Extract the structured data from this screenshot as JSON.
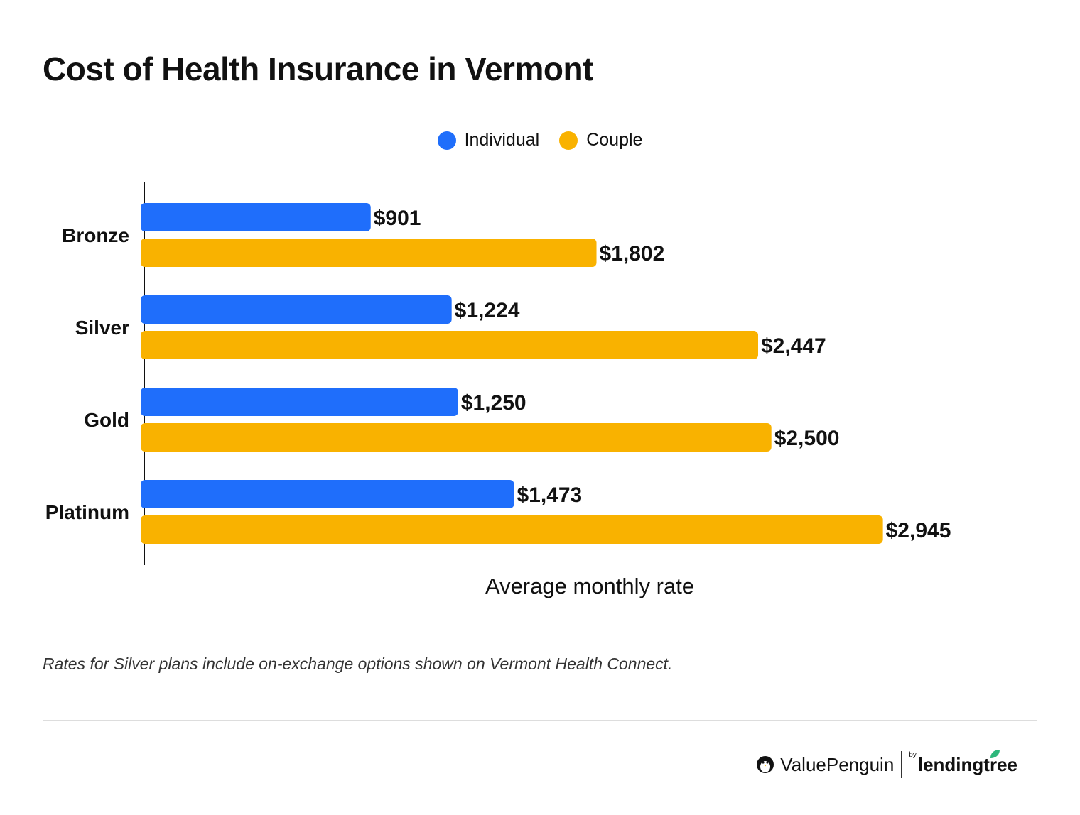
{
  "title": "Cost of Health Insurance in Vermont",
  "legend": [
    {
      "label": "Individual",
      "color": "#1F6EFB"
    },
    {
      "label": "Couple",
      "color": "#F9B200"
    }
  ],
  "chart_data": {
    "type": "bar",
    "orientation": "horizontal",
    "title": "Cost of Health Insurance in Vermont",
    "categories": [
      "Bronze",
      "Silver",
      "Gold",
      "Platinum"
    ],
    "series": [
      {
        "name": "Individual",
        "color": "#1F6EFB",
        "values": [
          901,
          1224,
          1250,
          1473
        ],
        "labels": [
          "$901",
          "$1,224",
          "$1,250",
          "$1,473"
        ]
      },
      {
        "name": "Couple",
        "color": "#F9B200",
        "values": [
          1802,
          2447,
          2500,
          2945
        ],
        "labels": [
          "$1,802",
          "$2,447",
          "$2,500",
          "$2,945"
        ]
      }
    ],
    "xlabel": "Average monthly rate",
    "ylabel": "",
    "xlim": [
      0,
      3550
    ],
    "grid": false,
    "legend_position": "top-center"
  },
  "footnote": "Rates for Silver plans include on-exchange options shown on Vermont Health Connect.",
  "brand": {
    "name": "ValuePenguin",
    "by": "by",
    "partner": "lendingtree"
  }
}
